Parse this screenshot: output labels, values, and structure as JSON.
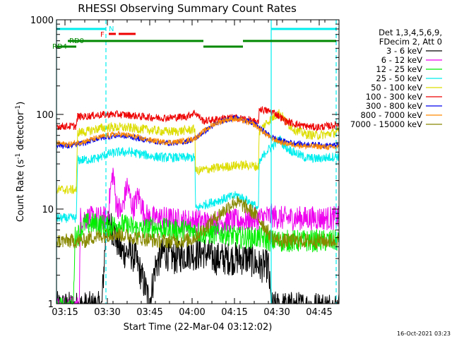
{
  "chart_data": {
    "type": "line",
    "title": "RHESSI Observing Summary Count Rates",
    "xlabel": "Start Time (22-Mar-04 03:12:02)",
    "ylabel_main": "Count Rate (s",
    "ylabel_sup1": "-1",
    "ylabel_mid": " detector",
    "ylabel_sup2": "-1",
    "ylabel_end": ")",
    "footer": "16-Oct-2021 03:23",
    "x_unit": "minutes since 03:12:02",
    "xlim": [
      0,
      100
    ],
    "yscale": "log",
    "ylim": [
      1,
      1000
    ],
    "xticks": [
      {
        "t": 3,
        "label": "03:15"
      },
      {
        "t": 18,
        "label": "03:30"
      },
      {
        "t": 33,
        "label": "03:45"
      },
      {
        "t": 48,
        "label": "04:00"
      },
      {
        "t": 63,
        "label": "04:15"
      },
      {
        "t": 78,
        "label": "04:30"
      },
      {
        "t": 93,
        "label": "04:45"
      }
    ],
    "yticks": [
      {
        "v": 1,
        "label": "1"
      },
      {
        "v": 10,
        "label": "10"
      },
      {
        "v": 100,
        "label": "100"
      },
      {
        "v": 1000,
        "label": "1000"
      }
    ],
    "legend": {
      "header1": "Det 1,3,4,5,6,9,",
      "header2": "FDecim 2, Att 0",
      "items": [
        {
          "label": "3 - 6 keV",
          "color": "#000000"
        },
        {
          "label": "6 - 12 keV",
          "color": "#ee00ee"
        },
        {
          "label": "12 - 25 keV",
          "color": "#00ee00"
        },
        {
          "label": "25 - 50 keV",
          "color": "#00eeee"
        },
        {
          "label": "50 - 100 keV",
          "color": "#dddd00"
        },
        {
          "label": "100 - 300 keV",
          "color": "#ee0000"
        },
        {
          "label": "300 - 800 keV",
          "color": "#0000ee"
        },
        {
          "label": "800 - 7000 keV",
          "color": "#ff8800"
        },
        {
          "label": "7000 - 15000 keV",
          "color": "#888800"
        }
      ]
    },
    "flags": {
      "N_label": "N",
      "F_label": "F",
      "RD0_label": "RD0",
      "RD4_label": "RD4",
      "night_color": "#00eeee",
      "flare_color": "#ee0000",
      "rd_color": "#008800",
      "N": [
        [
          -1,
          17.5
        ],
        [
          76,
          99
        ]
      ],
      "F": [
        [
          18.5,
          21
        ],
        [
          22,
          28
        ]
      ],
      "RD0": [
        [
          -1,
          0
        ],
        [
          4,
          52
        ],
        [
          66,
          99
        ]
      ],
      "RD4": [
        [
          -1,
          7
        ],
        [
          52,
          66
        ]
      ]
    },
    "vlines_solid": [
      0,
      76
    ],
    "vlines_dashed": [
      17.5,
      99
    ],
    "series": [
      {
        "key": "black",
        "color": "#000000",
        "noise": 0.18,
        "points": [
          [
            0,
            0.9
          ],
          [
            16,
            0.9
          ],
          [
            17.5,
            6
          ],
          [
            19,
            7
          ],
          [
            21,
            5
          ],
          [
            23,
            3.5
          ],
          [
            26,
            3.5
          ],
          [
            28,
            3
          ],
          [
            30,
            2
          ],
          [
            32,
            1.3
          ],
          [
            33,
            1
          ],
          [
            35,
            2.5
          ],
          [
            38,
            3.5
          ],
          [
            42,
            3
          ],
          [
            47,
            3.5
          ],
          [
            49,
            3.3
          ],
          [
            52,
            3.5
          ],
          [
            56,
            3
          ],
          [
            60,
            3
          ],
          [
            64,
            3
          ],
          [
            68,
            3
          ],
          [
            72,
            2.5
          ],
          [
            75,
            2.5
          ],
          [
            76,
            0.9
          ],
          [
            100,
            0.9
          ]
        ]
      },
      {
        "key": "magenta",
        "color": "#ee00ee",
        "noise": 0.13,
        "points": [
          [
            0,
            0.9
          ],
          [
            8,
            0.9
          ],
          [
            8.5,
            8
          ],
          [
            15,
            8
          ],
          [
            17.5,
            8
          ],
          [
            18,
            7.5
          ],
          [
            19,
            15
          ],
          [
            20,
            25
          ],
          [
            21,
            12
          ],
          [
            23,
            9
          ],
          [
            25,
            18
          ],
          [
            27,
            10
          ],
          [
            29,
            14
          ],
          [
            31,
            9
          ],
          [
            33,
            8
          ],
          [
            38,
            8
          ],
          [
            44,
            7.5
          ],
          [
            50,
            7.5
          ],
          [
            55,
            7
          ],
          [
            60,
            7.5
          ],
          [
            65,
            7.5
          ],
          [
            70,
            7.8
          ],
          [
            76,
            8.5
          ],
          [
            80,
            8
          ],
          [
            85,
            8
          ],
          [
            90,
            8
          ],
          [
            100,
            8
          ]
        ]
      },
      {
        "key": "green",
        "color": "#00ee00",
        "noise": 0.12,
        "points": [
          [
            0,
            0.9
          ],
          [
            6,
            0.9
          ],
          [
            6.5,
            5
          ],
          [
            8,
            5.5
          ],
          [
            10,
            7
          ],
          [
            12,
            7
          ],
          [
            15,
            7
          ],
          [
            18,
            6.5
          ],
          [
            22,
            7
          ],
          [
            26,
            6.5
          ],
          [
            30,
            6
          ],
          [
            34,
            6.5
          ],
          [
            40,
            6
          ],
          [
            46,
            6
          ],
          [
            48,
            6
          ],
          [
            52,
            5.5
          ],
          [
            56,
            5.5
          ],
          [
            60,
            5.5
          ],
          [
            64,
            5
          ],
          [
            68,
            5
          ],
          [
            72,
            5
          ],
          [
            76,
            4.6
          ],
          [
            80,
            4.6
          ],
          [
            90,
            4.6
          ],
          [
            100,
            4.6
          ]
        ]
      },
      {
        "key": "cyan",
        "color": "#00eeee",
        "noise": 0.05,
        "points": [
          [
            0,
            8
          ],
          [
            7,
            8
          ],
          [
            7.5,
            33
          ],
          [
            10,
            33
          ],
          [
            14,
            34
          ],
          [
            18,
            38
          ],
          [
            22,
            40
          ],
          [
            26,
            40
          ],
          [
            30,
            38
          ],
          [
            34,
            36
          ],
          [
            38,
            35
          ],
          [
            42,
            35
          ],
          [
            46,
            35
          ],
          [
            49,
            35
          ],
          [
            49.2,
            10
          ],
          [
            52,
            11
          ],
          [
            56,
            12
          ],
          [
            60,
            13
          ],
          [
            64,
            14
          ],
          [
            68,
            12
          ],
          [
            70,
            11
          ],
          [
            71.5,
            10
          ],
          [
            71.7,
            30
          ],
          [
            74,
            40
          ],
          [
            76,
            45
          ],
          [
            79,
            55
          ],
          [
            81,
            45
          ],
          [
            84,
            40
          ],
          [
            88,
            35
          ],
          [
            92,
            34
          ],
          [
            96,
            35
          ],
          [
            99,
            36
          ],
          [
            100,
            36
          ]
        ]
      },
      {
        "key": "yellow",
        "color": "#dddd00",
        "noise": 0.05,
        "points": [
          [
            0,
            16
          ],
          [
            7,
            16
          ],
          [
            7.5,
            65
          ],
          [
            10,
            65
          ],
          [
            14,
            70
          ],
          [
            18,
            73
          ],
          [
            22,
            73
          ],
          [
            26,
            72
          ],
          [
            30,
            70
          ],
          [
            34,
            68
          ],
          [
            38,
            66
          ],
          [
            42,
            66
          ],
          [
            46,
            68
          ],
          [
            49,
            70
          ],
          [
            49.2,
            25
          ],
          [
            52,
            26
          ],
          [
            56,
            27
          ],
          [
            60,
            28
          ],
          [
            64,
            29
          ],
          [
            68,
            29
          ],
          [
            71.5,
            28
          ],
          [
            71.7,
            65
          ],
          [
            74,
            80
          ],
          [
            77,
            95
          ],
          [
            79,
            105
          ],
          [
            81,
            85
          ],
          [
            84,
            70
          ],
          [
            88,
            62
          ],
          [
            92,
            60
          ],
          [
            96,
            62
          ],
          [
            99,
            65
          ],
          [
            100,
            65
          ]
        ]
      },
      {
        "key": "red",
        "color": "#ee0000",
        "noise": 0.04,
        "points": [
          [
            0,
            75
          ],
          [
            7,
            75
          ],
          [
            7.5,
            95
          ],
          [
            10,
            95
          ],
          [
            14,
            98
          ],
          [
            18,
            100
          ],
          [
            22,
            100
          ],
          [
            26,
            98
          ],
          [
            30,
            95
          ],
          [
            34,
            93
          ],
          [
            38,
            92
          ],
          [
            42,
            93
          ],
          [
            46,
            95
          ],
          [
            49,
            105
          ],
          [
            52,
            85
          ],
          [
            56,
            88
          ],
          [
            60,
            92
          ],
          [
            64,
            92
          ],
          [
            68,
            88
          ],
          [
            71.5,
            80
          ],
          [
            71.7,
            115
          ],
          [
            74,
            110
          ],
          [
            77,
            105
          ],
          [
            79,
            95
          ],
          [
            81,
            85
          ],
          [
            84,
            80
          ],
          [
            88,
            75
          ],
          [
            92,
            73
          ],
          [
            96,
            75
          ],
          [
            100,
            78
          ]
        ]
      },
      {
        "key": "blue",
        "color": "#0000ee",
        "noise": 0.03,
        "points": [
          [
            0,
            48
          ],
          [
            4,
            46
          ],
          [
            7,
            48
          ],
          [
            10,
            50
          ],
          [
            14,
            55
          ],
          [
            18,
            58
          ],
          [
            22,
            60
          ],
          [
            26,
            58
          ],
          [
            30,
            55
          ],
          [
            34,
            52
          ],
          [
            38,
            50
          ],
          [
            42,
            50
          ],
          [
            46,
            52
          ],
          [
            49,
            55
          ],
          [
            52,
            65
          ],
          [
            56,
            78
          ],
          [
            60,
            88
          ],
          [
            63,
            92
          ],
          [
            66,
            88
          ],
          [
            70,
            80
          ],
          [
            73,
            68
          ],
          [
            76,
            58
          ],
          [
            80,
            52
          ],
          [
            84,
            50
          ],
          [
            88,
            48
          ],
          [
            92,
            48
          ],
          [
            96,
            47
          ],
          [
            100,
            47
          ]
        ]
      },
      {
        "key": "orange",
        "color": "#ff8800",
        "noise": 0.03,
        "points": [
          [
            0,
            50
          ],
          [
            4,
            48
          ],
          [
            7,
            50
          ],
          [
            10,
            52
          ],
          [
            14,
            56
          ],
          [
            18,
            60
          ],
          [
            22,
            62
          ],
          [
            26,
            60
          ],
          [
            30,
            56
          ],
          [
            34,
            53
          ],
          [
            38,
            51
          ],
          [
            42,
            51
          ],
          [
            46,
            53
          ],
          [
            49,
            56
          ],
          [
            52,
            66
          ],
          [
            56,
            80
          ],
          [
            60,
            88
          ],
          [
            63,
            90
          ],
          [
            66,
            86
          ],
          [
            70,
            78
          ],
          [
            73,
            66
          ],
          [
            76,
            56
          ],
          [
            80,
            50
          ],
          [
            84,
            48
          ],
          [
            88,
            46
          ],
          [
            92,
            46
          ],
          [
            96,
            45
          ],
          [
            100,
            45
          ]
        ]
      },
      {
        "key": "olive",
        "color": "#888800",
        "noise": 0.08,
        "points": [
          [
            0,
            4.6
          ],
          [
            10,
            4.6
          ],
          [
            12,
            5
          ],
          [
            16,
            5.2
          ],
          [
            20,
            5.5
          ],
          [
            24,
            5.3
          ],
          [
            28,
            5
          ],
          [
            32,
            4.8
          ],
          [
            36,
            4.6
          ],
          [
            40,
            4.6
          ],
          [
            44,
            4.6
          ],
          [
            48,
            4.8
          ],
          [
            52,
            6
          ],
          [
            56,
            8
          ],
          [
            60,
            10
          ],
          [
            63,
            12
          ],
          [
            66,
            11
          ],
          [
            70,
            9
          ],
          [
            73,
            7
          ],
          [
            76,
            5
          ],
          [
            80,
            4.6
          ],
          [
            90,
            4.6
          ],
          [
            100,
            4.6
          ]
        ]
      }
    ]
  }
}
